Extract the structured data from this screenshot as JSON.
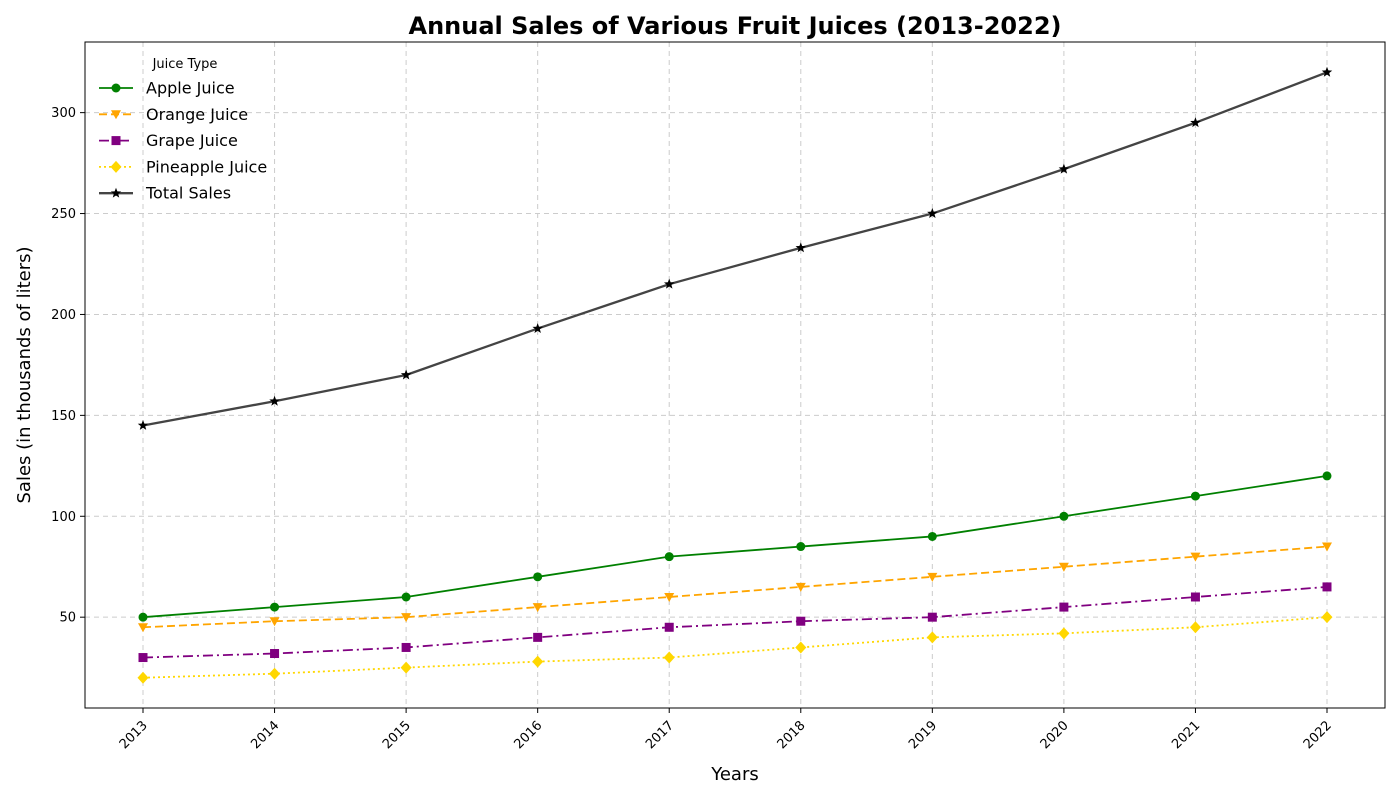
{
  "chart_data": {
    "type": "line",
    "title": "Annual Sales of Various Fruit Juices (2013-2022)",
    "xlabel": "Years",
    "ylabel": "Sales (in thousands of liters)",
    "x": [
      "2013",
      "2014",
      "2015",
      "2016",
      "2017",
      "2018",
      "2019",
      "2020",
      "2021",
      "2022"
    ],
    "y_ticks": [
      "50",
      "100",
      "150",
      "200",
      "250",
      "300"
    ],
    "ylim": [
      5,
      335
    ],
    "grid": true,
    "legend": {
      "title": "Juice Type",
      "placement": "top-left"
    },
    "series": [
      {
        "name": "Apple Juice",
        "values": [
          50,
          55,
          60,
          70,
          80,
          85,
          90,
          100,
          110,
          120
        ],
        "color": "#008000",
        "marker": "circle",
        "linestyle": "solid"
      },
      {
        "name": "Orange Juice",
        "values": [
          45,
          48,
          50,
          55,
          60,
          65,
          70,
          75,
          80,
          85
        ],
        "color": "#ffa500",
        "marker": "triangle-down",
        "linestyle": "dashed"
      },
      {
        "name": "Grape Juice",
        "values": [
          30,
          32,
          35,
          40,
          45,
          48,
          50,
          55,
          60,
          65
        ],
        "color": "#800080",
        "marker": "square",
        "linestyle": "dashdot"
      },
      {
        "name": "Pineapple Juice",
        "values": [
          20,
          22,
          25,
          28,
          30,
          35,
          40,
          42,
          45,
          50
        ],
        "color": "#ffd700",
        "marker": "diamond",
        "linestyle": "dotted"
      },
      {
        "name": "Total Sales",
        "values": [
          145,
          157,
          170,
          193,
          215,
          233,
          250,
          272,
          295,
          320
        ],
        "color": "#444444",
        "marker": "star",
        "linestyle": "solid"
      }
    ]
  }
}
